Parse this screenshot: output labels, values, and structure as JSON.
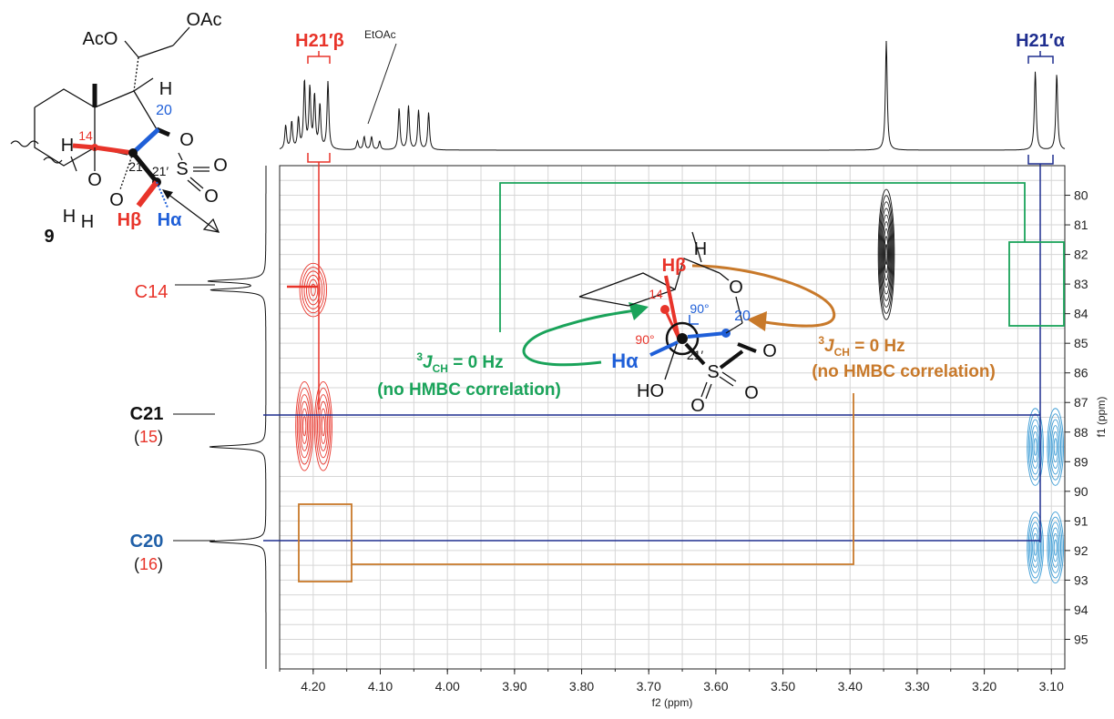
{
  "colors": {
    "red": "#e8342a",
    "blue": "#1f2e8f",
    "lightblue": "#3a9bd5",
    "green": "#1aa35a",
    "orange": "#c8792a",
    "grid": "#d6d6d6",
    "black": "#111111"
  },
  "molecule": {
    "compound_number": "9",
    "labels": {
      "aco": "AcO",
      "oac": "OAc",
      "h_top": "H",
      "h_left": "H",
      "n14": "14",
      "n20": "20",
      "n21": "21",
      "n21p": "21′",
      "o1": "O",
      "o2": "O",
      "o3": "O",
      "o4": "O",
      "s": "S",
      "hh": "H",
      "h_h": "H",
      "hbeta": "Hβ",
      "halpha": "Hα"
    }
  },
  "newman": {
    "h_top": "H",
    "o_top": "O",
    "hbeta": "Hβ",
    "n14": "14",
    "n20": "20",
    "angle1": "90°",
    "angle2": "90°",
    "halpha": "Hα",
    "n21p": "21′",
    "s": "S",
    "o_right": "O",
    "o_bottom": "O",
    "o_bottom2": "O",
    "ho": "HO"
  },
  "annotations": {
    "h21b": "H21′β",
    "h21a": "H21′α",
    "etoac": "EtOAc",
    "c14": "C14",
    "c21": "C21",
    "c21_sub_open": "(",
    "c21_sub": "15",
    "c21_sub_close": ")",
    "c20": "C20",
    "c20_sub_open": "(",
    "c20_sub": "16",
    "c20_sub_close": ")",
    "green_j_sup": "3",
    "green_j": "J",
    "green_j_sub": "CH",
    "green_j_rest": " = 0 Hz",
    "green_note": "(no HMBC correlation)",
    "orange_j_sup": "3",
    "orange_j": "J",
    "orange_j_sub": "CH",
    "orange_j_rest": " = 0 Hz",
    "orange_note": "(no HMBC correlation)"
  },
  "chart_data": {
    "type": "heatmap",
    "title": "",
    "xlabel": "f2 (ppm)",
    "ylabel": "f1 (ppm)",
    "xlim": [
      4.25,
      3.08
    ],
    "ylim": [
      79,
      96
    ],
    "x_ticks": [
      4.2,
      4.1,
      4.0,
      3.9,
      3.8,
      3.7,
      3.6,
      3.5,
      3.4,
      3.3,
      3.2,
      3.1
    ],
    "x_tick_labels": [
      "4.20",
      "4.10",
      "4.00",
      "3.90",
      "3.80",
      "3.70",
      "3.60",
      "3.50",
      "3.40",
      "3.30",
      "3.20",
      "3.10"
    ],
    "y_ticks": [
      80,
      81,
      82,
      83,
      84,
      85,
      86,
      87,
      88,
      89,
      90,
      91,
      92,
      93,
      94,
      95
    ],
    "y_tick_labels": [
      "80",
      "81",
      "82",
      "83",
      "84",
      "85",
      "86",
      "87",
      "88",
      "89",
      "90",
      "91",
      "92",
      "93",
      "94",
      "95"
    ],
    "grid": true,
    "proton_peaks": [
      {
        "x": 4.241,
        "h": 0.22
      },
      {
        "x": 4.232,
        "h": 0.25
      },
      {
        "x": 4.222,
        "h": 0.28
      },
      {
        "x": 4.213,
        "h": 0.62
      },
      {
        "x": 4.205,
        "h": 0.55
      },
      {
        "x": 4.198,
        "h": 0.48
      },
      {
        "x": 4.19,
        "h": 0.4
      },
      {
        "x": 4.178,
        "h": 0.62
      },
      {
        "x": 4.134,
        "h": 0.08
      },
      {
        "x": 4.124,
        "h": 0.12
      },
      {
        "x": 4.113,
        "h": 0.12
      },
      {
        "x": 4.101,
        "h": 0.08
      },
      {
        "x": 4.072,
        "h": 0.38
      },
      {
        "x": 4.058,
        "h": 0.4
      },
      {
        "x": 4.043,
        "h": 0.36
      },
      {
        "x": 4.028,
        "h": 0.34
      },
      {
        "x": 3.346,
        "h": 1.0
      },
      {
        "x": 3.124,
        "h": 0.72
      },
      {
        "x": 3.092,
        "h": 0.7
      }
    ],
    "carbon_peaks": [
      {
        "y": 82.9,
        "h": 1.0
      },
      {
        "y": 83.2,
        "h": 0.95
      },
      {
        "y": 88.5,
        "h": 1.0
      },
      {
        "y": 91.7,
        "h": 1.0
      }
    ],
    "cross_peaks": [
      {
        "x": 4.2,
        "y": 83.2,
        "sx": 0.02,
        "sy": 0.9,
        "color": "red"
      },
      {
        "x": 4.213,
        "y": 87.8,
        "sx": 0.013,
        "sy": 1.5,
        "color": "red"
      },
      {
        "x": 4.185,
        "y": 87.8,
        "sx": 0.013,
        "sy": 1.5,
        "color": "red"
      },
      {
        "x": 3.346,
        "y": 82.0,
        "sx": 0.012,
        "sy": 2.2,
        "color": "black"
      },
      {
        "x": 3.124,
        "y": 88.5,
        "sx": 0.012,
        "sy": 1.3,
        "color": "lightblue"
      },
      {
        "x": 3.094,
        "y": 88.5,
        "sx": 0.012,
        "sy": 1.3,
        "color": "lightblue"
      },
      {
        "x": 3.124,
        "y": 91.9,
        "sx": 0.012,
        "sy": 1.2,
        "color": "lightblue"
      },
      {
        "x": 3.094,
        "y": 91.9,
        "sx": 0.012,
        "sy": 1.2,
        "color": "lightblue"
      }
    ],
    "annotations": [
      {
        "label": "C14",
        "y": 83.1
      },
      {
        "label": "C21",
        "y": 88.4
      },
      {
        "label": "C20",
        "y": 91.7
      },
      {
        "label": "H21′β",
        "x": 4.198
      },
      {
        "label": "H21′α",
        "x": 3.109
      }
    ]
  }
}
